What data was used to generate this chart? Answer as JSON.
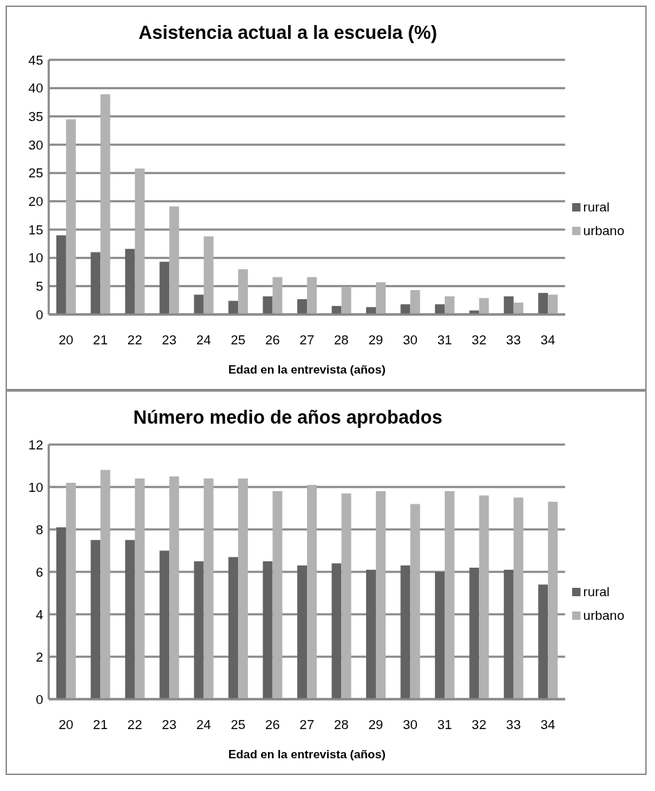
{
  "chart_data": [
    {
      "type": "bar",
      "title": "Asistencia actual a la escuela (%)",
      "xlabel": "Edad en la entrevista (años)",
      "categories": [
        "20",
        "21",
        "22",
        "23",
        "24",
        "25",
        "26",
        "27",
        "28",
        "29",
        "30",
        "31",
        "32",
        "33",
        "34"
      ],
      "series": [
        {
          "name": "rural",
          "color": "#636363",
          "values": [
            14.0,
            11.0,
            11.6,
            9.3,
            3.5,
            2.4,
            3.2,
            2.7,
            1.5,
            1.3,
            1.8,
            1.8,
            0.7,
            3.2,
            3.8
          ]
        },
        {
          "name": "urbano",
          "color": "#b2b2b2",
          "values": [
            34.5,
            38.9,
            25.8,
            19.1,
            13.8,
            8.0,
            6.6,
            6.6,
            4.9,
            5.7,
            4.3,
            3.2,
            2.9,
            2.1,
            3.5
          ]
        }
      ],
      "ylim": [
        0,
        45
      ],
      "yticks": [
        0,
        5,
        10,
        15,
        20,
        25,
        30,
        35,
        40,
        45
      ],
      "grid": "y",
      "legend": "right"
    },
    {
      "type": "bar",
      "title": "Número medio de años aprobados",
      "xlabel": "Edad en la entrevista (años)",
      "categories": [
        "20",
        "21",
        "22",
        "23",
        "24",
        "25",
        "26",
        "27",
        "28",
        "29",
        "30",
        "31",
        "32",
        "33",
        "34"
      ],
      "series": [
        {
          "name": "rural",
          "color": "#636363",
          "values": [
            8.1,
            7.5,
            7.5,
            7.0,
            6.5,
            6.7,
            6.5,
            6.3,
            6.4,
            6.1,
            6.3,
            6.0,
            6.2,
            6.1,
            5.4
          ]
        },
        {
          "name": "urbano",
          "color": "#b2b2b2",
          "values": [
            10.2,
            10.8,
            10.4,
            10.5,
            10.4,
            10.4,
            9.8,
            10.1,
            9.7,
            9.8,
            9.2,
            9.8,
            9.6,
            9.5,
            9.3
          ]
        }
      ],
      "ylim": [
        0,
        12
      ],
      "yticks": [
        0,
        2,
        4,
        6,
        8,
        10,
        12
      ],
      "grid": "y",
      "legend": "right"
    }
  ]
}
